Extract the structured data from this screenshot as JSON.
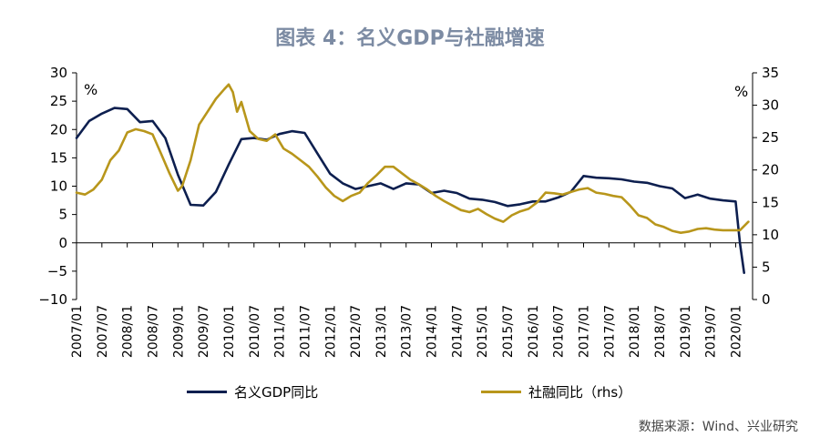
{
  "chart_data": {
    "type": "line",
    "title": "图表 4：名义GDP与社融增速",
    "left_axis": {
      "unit": "%",
      "ylim": [
        -10,
        30
      ],
      "ticks": [
        30,
        25,
        20,
        15,
        10,
        5,
        0,
        -5,
        -10
      ]
    },
    "right_axis": {
      "unit": "%",
      "ylim": [
        0,
        35
      ],
      "ticks": [
        35,
        30,
        25,
        20,
        15,
        10,
        5,
        0
      ]
    },
    "x_tick_labels": [
      "2007/01",
      "2007/07",
      "2008/01",
      "2008/07",
      "2009/01",
      "2009/07",
      "2010/01",
      "2010/07",
      "2011/01",
      "2011/07",
      "2012/01",
      "2012/07",
      "2013/01",
      "2013/07",
      "2014/01",
      "2014/07",
      "2015/01",
      "2015/07",
      "2016/01",
      "2016/07",
      "2017/01",
      "2017/07",
      "2018/01",
      "2018/07",
      "2019/01",
      "2019/07",
      "2020/01"
    ],
    "series": [
      {
        "name": "名义GDP同比",
        "axis": "left",
        "color": "#0d1f4f",
        "points": [
          [
            "2007/01",
            18.5
          ],
          [
            "2007/04",
            21.5
          ],
          [
            "2007/07",
            22.8
          ],
          [
            "2007/10",
            23.8
          ],
          [
            "2008/01",
            23.6
          ],
          [
            "2008/04",
            21.3
          ],
          [
            "2008/07",
            21.5
          ],
          [
            "2008/10",
            18.5
          ],
          [
            "2009/01",
            12.0
          ],
          [
            "2009/04",
            6.7
          ],
          [
            "2009/07",
            6.6
          ],
          [
            "2009/10",
            9.0
          ],
          [
            "2010/01",
            13.8
          ],
          [
            "2010/04",
            18.3
          ],
          [
            "2010/07",
            18.5
          ],
          [
            "2010/10",
            18.2
          ],
          [
            "2011/01",
            19.2
          ],
          [
            "2011/04",
            19.7
          ],
          [
            "2011/07",
            19.4
          ],
          [
            "2011/10",
            15.8
          ],
          [
            "2012/01",
            12.2
          ],
          [
            "2012/04",
            10.5
          ],
          [
            "2012/07",
            9.5
          ],
          [
            "2012/10",
            10.0
          ],
          [
            "2013/01",
            10.5
          ],
          [
            "2013/04",
            9.5
          ],
          [
            "2013/07",
            10.5
          ],
          [
            "2013/10",
            10.3
          ],
          [
            "2014/01",
            8.8
          ],
          [
            "2014/04",
            9.2
          ],
          [
            "2014/07",
            8.8
          ],
          [
            "2014/10",
            7.8
          ],
          [
            "2015/01",
            7.6
          ],
          [
            "2015/04",
            7.2
          ],
          [
            "2015/07",
            6.5
          ],
          [
            "2015/10",
            6.8
          ],
          [
            "2016/01",
            7.3
          ],
          [
            "2016/04",
            7.3
          ],
          [
            "2016/07",
            8.0
          ],
          [
            "2016/10",
            9.0
          ],
          [
            "2017/01",
            11.8
          ],
          [
            "2017/04",
            11.5
          ],
          [
            "2017/07",
            11.4
          ],
          [
            "2017/10",
            11.2
          ],
          [
            "2018/01",
            10.8
          ],
          [
            "2018/04",
            10.6
          ],
          [
            "2018/07",
            10.0
          ],
          [
            "2018/10",
            9.6
          ],
          [
            "2019/01",
            7.9
          ],
          [
            "2019/04",
            8.5
          ],
          [
            "2019/07",
            7.8
          ],
          [
            "2019/10",
            7.5
          ],
          [
            "2020/01",
            7.3
          ],
          [
            "2020/02",
            0.0
          ],
          [
            "2020/03",
            -5.3
          ]
        ]
      },
      {
        "name": "社融同比（rhs）",
        "axis": "right",
        "color": "#b8961b",
        "points": [
          [
            "2007/01",
            16.5
          ],
          [
            "2007/03",
            16.2
          ],
          [
            "2007/05",
            17.0
          ],
          [
            "2007/07",
            18.5
          ],
          [
            "2007/09",
            21.5
          ],
          [
            "2007/11",
            23.0
          ],
          [
            "2008/01",
            25.8
          ],
          [
            "2008/03",
            26.3
          ],
          [
            "2008/05",
            26.0
          ],
          [
            "2008/07",
            25.5
          ],
          [
            "2008/09",
            22.5
          ],
          [
            "2008/11",
            19.5
          ],
          [
            "2009/01",
            16.8
          ],
          [
            "2009/02",
            17.5
          ],
          [
            "2009/04",
            21.5
          ],
          [
            "2009/06",
            27.0
          ],
          [
            "2009/08",
            29.0
          ],
          [
            "2009/10",
            31.0
          ],
          [
            "2009/12",
            32.5
          ],
          [
            "2010/01",
            33.2
          ],
          [
            "2010/02",
            32.0
          ],
          [
            "2010/03",
            29.0
          ],
          [
            "2010/04",
            30.5
          ],
          [
            "2010/06",
            26.0
          ],
          [
            "2010/08",
            24.8
          ],
          [
            "2010/10",
            24.5
          ],
          [
            "2010/12",
            25.5
          ],
          [
            "2011/02",
            23.3
          ],
          [
            "2011/04",
            22.5
          ],
          [
            "2011/06",
            21.5
          ],
          [
            "2011/08",
            20.5
          ],
          [
            "2011/10",
            19.0
          ],
          [
            "2011/12",
            17.3
          ],
          [
            "2012/02",
            16.0
          ],
          [
            "2012/04",
            15.2
          ],
          [
            "2012/06",
            16.0
          ],
          [
            "2012/08",
            16.5
          ],
          [
            "2012/10",
            18.0
          ],
          [
            "2012/12",
            19.2
          ],
          [
            "2013/02",
            20.5
          ],
          [
            "2013/04",
            20.5
          ],
          [
            "2013/06",
            19.5
          ],
          [
            "2013/08",
            18.5
          ],
          [
            "2013/10",
            17.8
          ],
          [
            "2013/12",
            17.0
          ],
          [
            "2014/02",
            16.0
          ],
          [
            "2014/04",
            15.2
          ],
          [
            "2014/06",
            14.5
          ],
          [
            "2014/08",
            13.8
          ],
          [
            "2014/10",
            13.5
          ],
          [
            "2014/12",
            14.0
          ],
          [
            "2015/02",
            13.2
          ],
          [
            "2015/04",
            12.5
          ],
          [
            "2015/06",
            12.0
          ],
          [
            "2015/08",
            13.0
          ],
          [
            "2015/10",
            13.6
          ],
          [
            "2015/12",
            14.0
          ],
          [
            "2016/02",
            15.0
          ],
          [
            "2016/04",
            16.5
          ],
          [
            "2016/06",
            16.4
          ],
          [
            "2016/08",
            16.2
          ],
          [
            "2016/10",
            16.6
          ],
          [
            "2016/12",
            17.0
          ],
          [
            "2017/02",
            17.2
          ],
          [
            "2017/04",
            16.5
          ],
          [
            "2017/06",
            16.3
          ],
          [
            "2017/08",
            16.0
          ],
          [
            "2017/10",
            15.8
          ],
          [
            "2017/12",
            14.5
          ],
          [
            "2018/02",
            13.0
          ],
          [
            "2018/04",
            12.6
          ],
          [
            "2018/06",
            11.6
          ],
          [
            "2018/08",
            11.2
          ],
          [
            "2018/10",
            10.6
          ],
          [
            "2018/12",
            10.3
          ],
          [
            "2019/02",
            10.5
          ],
          [
            "2019/04",
            10.9
          ],
          [
            "2019/06",
            11.0
          ],
          [
            "2019/08",
            10.8
          ],
          [
            "2019/10",
            10.7
          ],
          [
            "2019/12",
            10.7
          ],
          [
            "2020/02",
            10.7
          ],
          [
            "2020/04",
            12.0
          ]
        ]
      }
    ],
    "grid": false,
    "legend_position": "bottom"
  },
  "source": "数据来源：Wind、兴业研究"
}
